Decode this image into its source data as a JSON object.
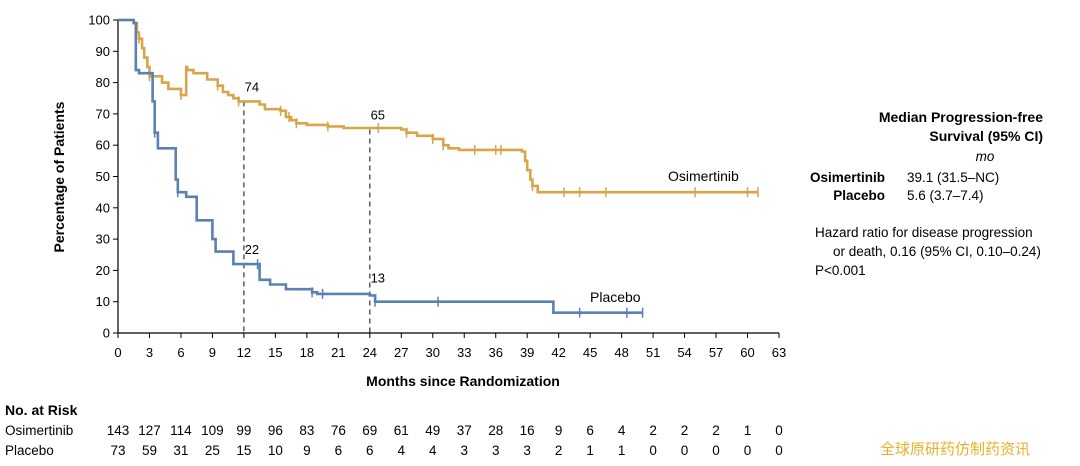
{
  "chart_data": {
    "type": "line",
    "subtype": "kaplan-meier",
    "title": "",
    "xlabel": "Months since Randomization",
    "ylabel": "Percentage of Patients",
    "xlim": [
      0,
      63
    ],
    "ylim": [
      0,
      100
    ],
    "xticks": [
      0,
      3,
      6,
      9,
      12,
      15,
      18,
      21,
      24,
      27,
      30,
      33,
      36,
      39,
      42,
      45,
      48,
      51,
      54,
      57,
      60,
      63
    ],
    "yticks": [
      0,
      10,
      20,
      30,
      40,
      50,
      60,
      70,
      80,
      90,
      100
    ],
    "colors": {
      "osimertinib": "#d9a54a",
      "placebo": "#5b80b2"
    },
    "series": [
      {
        "name": "Osimertinib",
        "step_points": [
          [
            0,
            100
          ],
          [
            1.5,
            99
          ],
          [
            1.8,
            96
          ],
          [
            2.0,
            94
          ],
          [
            2.3,
            91
          ],
          [
            2.5,
            88
          ],
          [
            2.8,
            85
          ],
          [
            3.0,
            82
          ],
          [
            3.8,
            82
          ],
          [
            4.2,
            80
          ],
          [
            4.8,
            78
          ],
          [
            6.0,
            76
          ],
          [
            6.5,
            85
          ],
          [
            6.6,
            84
          ],
          [
            7.2,
            83
          ],
          [
            8.5,
            81
          ],
          [
            9.5,
            79
          ],
          [
            10.0,
            77
          ],
          [
            10.5,
            76
          ],
          [
            11.0,
            75
          ],
          [
            11.5,
            74
          ],
          [
            13.5,
            73
          ],
          [
            14.0,
            71.5
          ],
          [
            15.5,
            71
          ],
          [
            16.0,
            69
          ],
          [
            16.5,
            68
          ],
          [
            17.0,
            67
          ],
          [
            18.0,
            66.5
          ],
          [
            20.0,
            66
          ],
          [
            21.5,
            65.5
          ],
          [
            27.0,
            65
          ],
          [
            27.5,
            64
          ],
          [
            28.5,
            63
          ],
          [
            30.0,
            62
          ],
          [
            31.0,
            60
          ],
          [
            31.5,
            59
          ],
          [
            32.5,
            58.5
          ],
          [
            38.5,
            58
          ],
          [
            38.8,
            55
          ],
          [
            39.0,
            52
          ],
          [
            39.3,
            49
          ],
          [
            39.5,
            47
          ],
          [
            40.0,
            45
          ],
          [
            61.0,
            45
          ]
        ],
        "censor_x": [
          2.0,
          3.0,
          6.0,
          9.5,
          11.5,
          15.5,
          16.3,
          17.0,
          20.0,
          24.8,
          27.5,
          30.0,
          31.0,
          34.0,
          36.0,
          36.5,
          39.5,
          42.5,
          44.0,
          46.5,
          55.0,
          60.0,
          61.0
        ],
        "annotations": [
          {
            "x": 12,
            "y": 74,
            "label": "74"
          },
          {
            "x": 24,
            "y": 65,
            "label": "65"
          }
        ],
        "end_label": "Osimertinib"
      },
      {
        "name": "Placebo",
        "step_points": [
          [
            0,
            100
          ],
          [
            1.5,
            99
          ],
          [
            1.7,
            84
          ],
          [
            2.0,
            83
          ],
          [
            3.0,
            83
          ],
          [
            3.3,
            74
          ],
          [
            3.5,
            64
          ],
          [
            3.8,
            59
          ],
          [
            5.3,
            59
          ],
          [
            5.5,
            49
          ],
          [
            5.7,
            45
          ],
          [
            6.5,
            43.5
          ],
          [
            7.3,
            43.5
          ],
          [
            7.5,
            36
          ],
          [
            8.8,
            36
          ],
          [
            9.0,
            30
          ],
          [
            9.3,
            26
          ],
          [
            10.8,
            26
          ],
          [
            11.0,
            22
          ],
          [
            13.3,
            22
          ],
          [
            13.5,
            17
          ],
          [
            14.5,
            15.5
          ],
          [
            16.0,
            14
          ],
          [
            18.5,
            13
          ],
          [
            19.0,
            12.5
          ],
          [
            24.0,
            12
          ],
          [
            24.5,
            10
          ],
          [
            41.0,
            10
          ],
          [
            41.5,
            6.5
          ],
          [
            50.0,
            6.5
          ]
        ],
        "censor_x": [
          3.5,
          5.7,
          13.3,
          18.5,
          19.5,
          24.5,
          30.5,
          44.0,
          48.5,
          50.0
        ],
        "annotations": [
          {
            "x": 12,
            "y": 22,
            "label": "22"
          },
          {
            "x": 24,
            "y": 13,
            "label": "13"
          }
        ],
        "end_label": "Placebo"
      }
    ],
    "reference_lines_x": [
      12,
      24
    ]
  },
  "stats": {
    "title_line1": "Median Progression-free",
    "title_line2": "Survival (95% CI)",
    "unit": "mo",
    "rows": [
      {
        "name": "Osimertinib",
        "value": "39.1 (31.5–NC)"
      },
      {
        "name": "Placebo",
        "value": "5.6 (3.7–7.4)"
      }
    ],
    "hr_line1": "Hazard ratio for disease progression",
    "hr_line2": "or death, 0.16 (95% CI, 0.10–0.24)",
    "p_value": "P<0.001"
  },
  "risk_table": {
    "title": "No. at Risk",
    "rows": [
      {
        "name": "Osimertinib",
        "values": [
          "143",
          "127",
          "114",
          "109",
          "99",
          "96",
          "83",
          "76",
          "69",
          "61",
          "49",
          "37",
          "28",
          "16",
          "9",
          "6",
          "4",
          "2",
          "2",
          "2",
          "1",
          "0"
        ]
      },
      {
        "name": "Placebo",
        "values": [
          "73",
          "59",
          "31",
          "25",
          "15",
          "10",
          "9",
          "6",
          "6",
          "4",
          "4",
          "3",
          "3",
          "3",
          "2",
          "1",
          "1",
          "0",
          "0",
          "0",
          "0",
          "0"
        ]
      }
    ]
  },
  "watermark": "全球原研药仿制药资讯"
}
